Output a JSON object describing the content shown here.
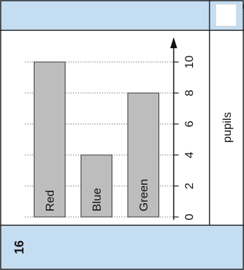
{
  "question_number": "16",
  "side_code": "16",
  "answer_unit": "pupils",
  "colors": {
    "band": "#c5ddf1",
    "bar": "#bdbdbd",
    "border": "#222222"
  },
  "chart_data": {
    "type": "bar",
    "orientation": "rotated-90-ccw",
    "categories": [
      "Red",
      "Blue",
      "Green"
    ],
    "values": [
      10,
      4,
      8
    ],
    "ylim": [
      0,
      10
    ],
    "ticks": [
      "0",
      "2",
      "4",
      "6",
      "8",
      "10"
    ],
    "tick_values": [
      0,
      2,
      4,
      6,
      8,
      10
    ],
    "grid": "dotted",
    "title": "",
    "xlabel": "",
    "ylabel": ""
  }
}
